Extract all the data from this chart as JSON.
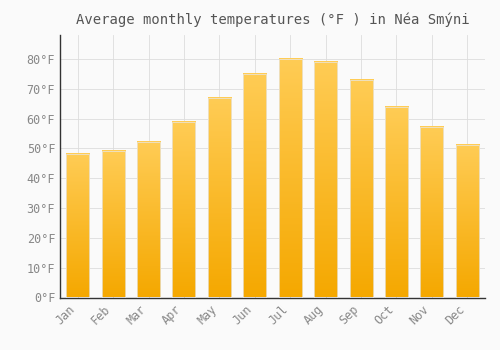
{
  "title": "Average monthly temperatures (°F ) in Néa Smýni",
  "months": [
    "Jan",
    "Feb",
    "Mar",
    "Apr",
    "May",
    "Jun",
    "Jul",
    "Aug",
    "Sep",
    "Oct",
    "Nov",
    "Dec"
  ],
  "values": [
    48,
    49,
    52,
    59,
    67,
    75,
    80,
    79,
    73,
    64,
    57,
    51
  ],
  "bar_color_top": "#FFC84A",
  "bar_color_bottom": "#F5A800",
  "bar_edge_color": "#E8E8E8",
  "background_color": "#FAFAFA",
  "grid_color": "#DDDDDD",
  "text_color": "#888888",
  "spine_color": "#333333",
  "ylim": [
    0,
    88
  ],
  "yticks": [
    0,
    10,
    20,
    30,
    40,
    50,
    60,
    70,
    80
  ],
  "title_fontsize": 10,
  "tick_fontsize": 8.5,
  "bar_width": 0.65
}
